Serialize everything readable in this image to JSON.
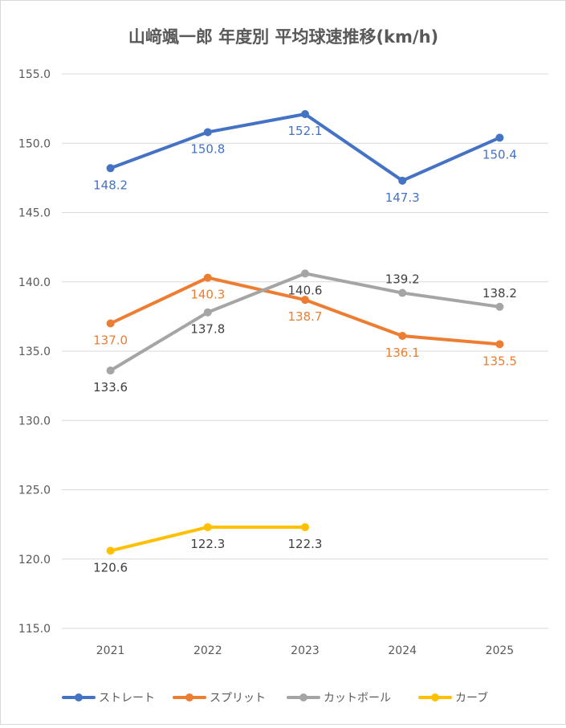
{
  "chart_data": {
    "type": "line",
    "title": "山﨑颯一郎 年度別 平均球速推移(km/h)",
    "xlabel": "",
    "ylabel": "",
    "categories": [
      "2021",
      "2022",
      "2023",
      "2024",
      "2025"
    ],
    "y_ticks": [
      "155.0",
      "150.0",
      "145.0",
      "140.0",
      "135.0",
      "130.0",
      "125.0",
      "120.0",
      "115.0"
    ],
    "ylim": [
      115,
      155
    ],
    "grid": true,
    "legend_position": "bottom",
    "series": [
      {
        "name": "ストレート",
        "color": "#4472C4",
        "values": [
          148.2,
          150.8,
          152.1,
          147.3,
          150.4
        ],
        "labels": [
          "148.2",
          "150.8",
          "152.1",
          "147.3",
          "150.4"
        ]
      },
      {
        "name": "スプリット",
        "color": "#ED7D31",
        "values": [
          137.0,
          140.3,
          138.7,
          136.1,
          135.5
        ],
        "labels": [
          "137.0",
          "140.3",
          "138.7",
          "136.1",
          "135.5"
        ]
      },
      {
        "name": "カットボール",
        "color": "#A5A5A5",
        "values": [
          133.6,
          137.8,
          140.6,
          139.2,
          138.2
        ],
        "labels": [
          "133.6",
          "137.8",
          "140.6",
          "139.2",
          "138.2"
        ]
      },
      {
        "name": "カーブ",
        "color": "#FFC000",
        "values": [
          120.6,
          122.3,
          122.3,
          null,
          null
        ],
        "labels": [
          "120.6",
          "122.3",
          "122.3",
          null,
          null
        ]
      }
    ]
  }
}
